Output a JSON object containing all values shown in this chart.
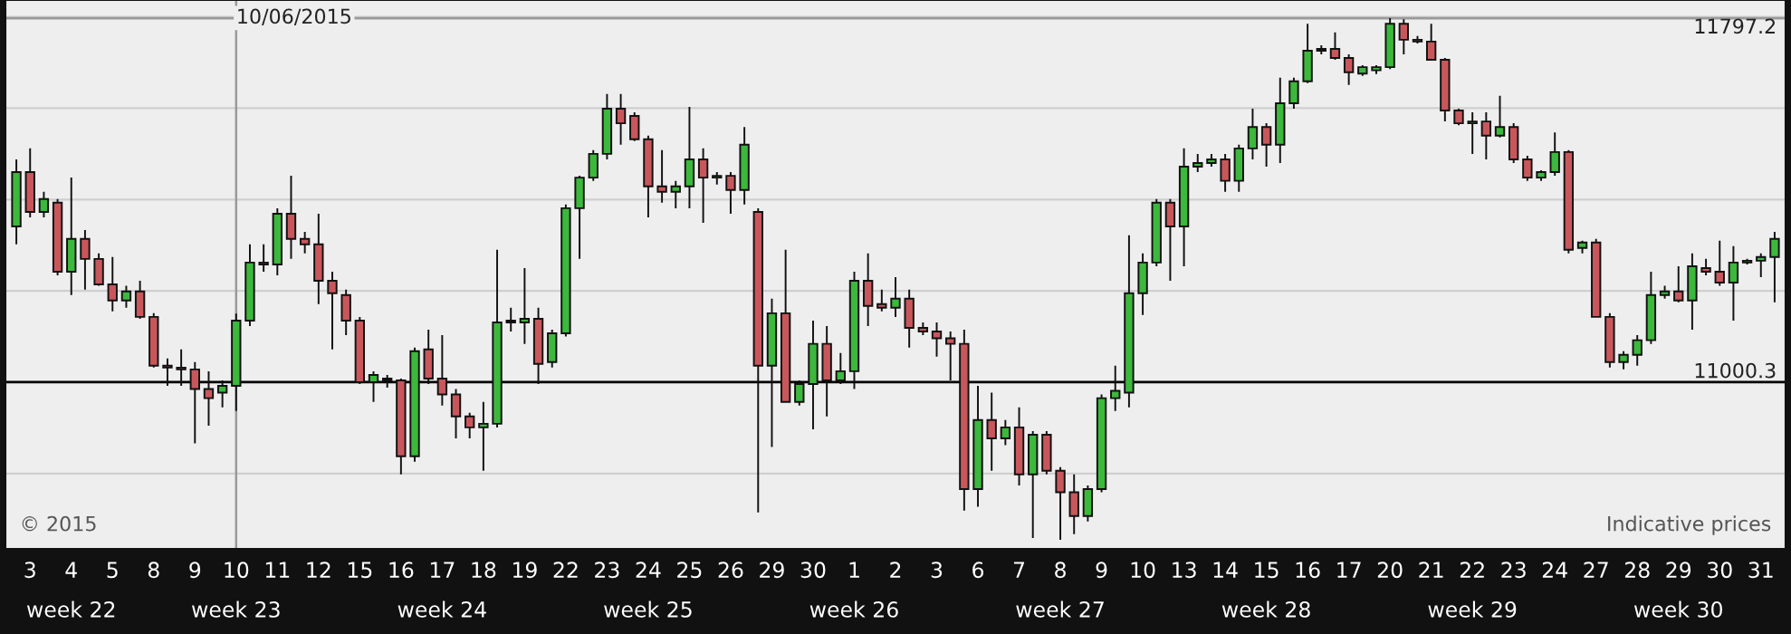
{
  "chart_data": {
    "type": "candlestick",
    "categories": [
      null,
      "3",
      null,
      null,
      "4",
      null,
      null,
      "5",
      null,
      null,
      "8",
      null,
      null,
      "9",
      null,
      null,
      "10",
      null,
      null,
      "11",
      null,
      null,
      "12",
      null,
      null,
      "15",
      null,
      null,
      "16",
      null,
      null,
      "17",
      null,
      null,
      "18",
      null,
      null,
      "19",
      null,
      null,
      "22",
      null,
      null,
      "23",
      null,
      null,
      "24",
      null,
      null,
      "25",
      null,
      null,
      "26",
      null,
      null,
      "29",
      null,
      null,
      "30",
      null,
      null,
      "1",
      null,
      null,
      "2",
      null,
      null,
      "3",
      null,
      null,
      "6",
      null,
      null,
      "7",
      null,
      null,
      "8",
      null,
      null,
      "9",
      null,
      null,
      "10",
      null,
      null,
      "13",
      null,
      null,
      "14",
      null,
      null,
      "15",
      null,
      null,
      "16",
      null,
      null,
      "17",
      null,
      null,
      "20",
      null,
      null,
      "21",
      null,
      null,
      "22",
      null,
      null,
      "23",
      null,
      null,
      "24",
      null,
      null,
      "27",
      null,
      null,
      "28",
      null,
      null,
      "29",
      null,
      null,
      "30",
      null,
      null,
      "31",
      null
    ],
    "ohlc": [
      [
        11341,
        11488,
        11302,
        11460
      ],
      [
        11460,
        11512,
        11361,
        11373
      ],
      [
        11373,
        11417,
        11361,
        11401
      ],
      [
        11393,
        11401,
        11234,
        11242
      ],
      [
        11242,
        11448,
        11191,
        11314
      ],
      [
        11314,
        11333,
        11203,
        11270
      ],
      [
        11270,
        11282,
        11211,
        11214
      ],
      [
        11214,
        11274,
        11155,
        11179
      ],
      [
        11179,
        11211,
        11163,
        11199
      ],
      [
        11199,
        11222,
        11139,
        11143
      ],
      [
        11143,
        11151,
        11032,
        11036
      ],
      [
        11036,
        11052,
        10992,
        11032
      ],
      [
        11032,
        11072,
        10992,
        11028
      ],
      [
        11028,
        11044,
        10866,
        10985
      ],
      [
        10985,
        11024,
        10905,
        10965
      ],
      [
        10977,
        11004,
        10945,
        10992
      ],
      [
        10992,
        11150,
        10937,
        11135
      ],
      [
        11135,
        11302,
        11123,
        11262
      ],
      [
        11262,
        11302,
        11242,
        11258
      ],
      [
        11258,
        11381,
        11234,
        11369
      ],
      [
        11369,
        11452,
        11270,
        11314
      ],
      [
        11314,
        11329,
        11282,
        11302
      ],
      [
        11302,
        11369,
        11171,
        11222
      ],
      [
        11222,
        11242,
        11072,
        11195
      ],
      [
        11191,
        11203,
        11103,
        11135
      ],
      [
        11135,
        11143,
        10996,
        11000
      ],
      [
        11000,
        11024,
        10957,
        11016
      ],
      [
        11008,
        11016,
        10988,
        11004
      ],
      [
        11004,
        11008,
        10798,
        10838
      ],
      [
        10838,
        11076,
        10826,
        11068
      ],
      [
        11072,
        11115,
        10996,
        11008
      ],
      [
        11008,
        11103,
        10949,
        10973
      ],
      [
        10973,
        10985,
        10877,
        10925
      ],
      [
        10925,
        10933,
        10877,
        10901
      ],
      [
        10901,
        10957,
        10806,
        10909
      ],
      [
        10909,
        11290,
        10901,
        11131
      ],
      [
        11135,
        11163,
        11111,
        11131
      ],
      [
        11131,
        11250,
        11084,
        11139
      ],
      [
        11139,
        11163,
        10996,
        11040
      ],
      [
        11044,
        11115,
        11032,
        11107
      ],
      [
        11107,
        11389,
        11100,
        11381
      ],
      [
        11381,
        11452,
        11270,
        11448
      ],
      [
        11448,
        11508,
        11441,
        11500
      ],
      [
        11500,
        11631,
        11488,
        11599
      ],
      [
        11599,
        11631,
        11520,
        11567
      ],
      [
        11583,
        11591,
        11528,
        11532
      ],
      [
        11532,
        11540,
        11361,
        11429
      ],
      [
        11429,
        11508,
        11393,
        11417
      ],
      [
        11417,
        11441,
        11381,
        11429
      ],
      [
        11429,
        11603,
        11381,
        11488
      ],
      [
        11488,
        11512,
        11349,
        11448
      ],
      [
        11448,
        11460,
        11433,
        11452
      ],
      [
        11452,
        11460,
        11369,
        11421
      ],
      [
        11421,
        11559,
        11389,
        11520
      ],
      [
        11373,
        11381,
        10715,
        11036
      ],
      [
        11036,
        11183,
        10858,
        11151
      ],
      [
        11151,
        11290,
        10957,
        10957
      ],
      [
        10957,
        11004,
        10949,
        10996
      ],
      [
        10996,
        11135,
        10897,
        11084
      ],
      [
        11084,
        11123,
        10925,
        11004
      ],
      [
        11004,
        11064,
        10996,
        11024
      ],
      [
        11024,
        11242,
        10985,
        11222
      ],
      [
        11222,
        11282,
        11123,
        11167
      ],
      [
        11171,
        11203,
        11155,
        11163
      ],
      [
        11163,
        11230,
        11143,
        11183
      ],
      [
        11183,
        11203,
        11076,
        11119
      ],
      [
        11119,
        11131,
        11103,
        11111
      ],
      [
        11111,
        11131,
        11056,
        11096
      ],
      [
        11096,
        11111,
        11004,
        11084
      ],
      [
        11084,
        11115,
        10719,
        10766
      ],
      [
        10766,
        10992,
        10727,
        10917
      ],
      [
        10917,
        10977,
        10806,
        10877
      ],
      [
        10877,
        10917,
        10862,
        10901
      ],
      [
        10901,
        10945,
        10774,
        10798
      ],
      [
        10798,
        10893,
        10659,
        10885
      ],
      [
        10885,
        10893,
        10798,
        10806
      ],
      [
        10806,
        10814,
        10655,
        10759
      ],
      [
        10759,
        10798,
        10667,
        10707
      ],
      [
        10707,
        10774,
        10695,
        10766
      ],
      [
        10766,
        10973,
        10759,
        10965
      ],
      [
        10965,
        11036,
        10937,
        10981
      ],
      [
        10977,
        11322,
        10945,
        11195
      ],
      [
        11195,
        11282,
        11147,
        11262
      ],
      [
        11262,
        11401,
        11254,
        11393
      ],
      [
        11393,
        11401,
        11222,
        11341
      ],
      [
        11341,
        11512,
        11254,
        11472
      ],
      [
        11472,
        11500,
        11460,
        11480
      ],
      [
        11480,
        11500,
        11472,
        11488
      ],
      [
        11488,
        11500,
        11417,
        11441
      ],
      [
        11441,
        11520,
        11417,
        11512
      ],
      [
        11512,
        11599,
        11488,
        11559
      ],
      [
        11559,
        11567,
        11472,
        11520
      ],
      [
        11520,
        11667,
        11480,
        11611
      ],
      [
        11611,
        11667,
        11599,
        11659
      ],
      [
        11659,
        11785,
        11655,
        11726
      ],
      [
        11726,
        11738,
        11718,
        11730
      ],
      [
        11730,
        11766,
        11706,
        11710
      ],
      [
        11710,
        11718,
        11651,
        11679
      ],
      [
        11676,
        11694,
        11671,
        11690
      ],
      [
        11683,
        11694,
        11675,
        11690
      ],
      [
        11690,
        11797.2,
        11686,
        11785
      ],
      [
        11785,
        11795,
        11718,
        11750
      ],
      [
        11750,
        11758,
        11742,
        11746
      ],
      [
        11746,
        11785,
        11706,
        11706
      ],
      [
        11706,
        11710,
        11571,
        11595
      ],
      [
        11595,
        11599,
        11563,
        11567
      ],
      [
        11567,
        11591,
        11500,
        11571
      ],
      [
        11571,
        11591,
        11488,
        11540
      ],
      [
        11540,
        11627,
        11536,
        11559
      ],
      [
        11559,
        11567,
        11480,
        11488
      ],
      [
        11488,
        11496,
        11441,
        11448
      ],
      [
        11448,
        11464,
        11441,
        11460
      ],
      [
        11460,
        11547,
        11452,
        11504
      ],
      [
        11504,
        11508,
        11282,
        11290
      ],
      [
        11294,
        11310,
        11282,
        11306
      ],
      [
        11306,
        11314,
        11143,
        11143
      ],
      [
        11143,
        11151,
        11032,
        11044
      ],
      [
        11044,
        11068,
        11028,
        11060
      ],
      [
        11060,
        11103,
        11036,
        11092
      ],
      [
        11092,
        11242,
        11084,
        11191
      ],
      [
        11191,
        11211,
        11183,
        11199
      ],
      [
        11199,
        11254,
        11175,
        11179
      ],
      [
        11179,
        11282,
        11115,
        11254
      ],
      [
        11250,
        11270,
        11234,
        11242
      ],
      [
        11242,
        11310,
        11211,
        11218
      ],
      [
        11218,
        11298,
        11135,
        11262
      ],
      [
        11262,
        11270,
        11258,
        11266
      ],
      [
        11266,
        11282,
        11230,
        11274
      ],
      [
        11274,
        11329,
        11175,
        11314
      ]
    ],
    "colors": [
      "#3cb83c",
      "#c8575c",
      "#3cb83c",
      "#c8575c",
      "#3cb83c",
      "#c8575c",
      "#c8575c",
      "#c8575c",
      "#3cb83c",
      "#c8575c",
      "#c8575c",
      "#c8575c",
      "#c8575c",
      "#c8575c",
      "#c8575c",
      "#3cb83c",
      "#3cb83c",
      "#3cb83c",
      "#c8575c",
      "#3cb83c",
      "#c8575c",
      "#c8575c",
      "#c8575c",
      "#c8575c",
      "#c8575c",
      "#c8575c",
      "#3cb83c",
      "#c8575c",
      "#c8575c",
      "#3cb83c",
      "#c8575c",
      "#c8575c",
      "#c8575c",
      "#c8575c",
      "#3cb83c",
      "#3cb83c",
      "#c8575c",
      "#3cb83c",
      "#c8575c",
      "#3cb83c",
      "#3cb83c",
      "#3cb83c",
      "#3cb83c",
      "#3cb83c",
      "#c8575c",
      "#c8575c",
      "#c8575c",
      "#c8575c",
      "#3cb83c",
      "#3cb83c",
      "#c8575c",
      "#3cb83c",
      "#c8575c",
      "#3cb83c",
      "#c8575c",
      "#3cb83c",
      "#c8575c",
      "#3cb83c",
      "#3cb83c",
      "#c8575c",
      "#3cb83c",
      "#3cb83c",
      "#c8575c",
      "#c8575c",
      "#3cb83c",
      "#c8575c",
      "#c8575c",
      "#c8575c",
      "#c8575c",
      "#c8575c",
      "#3cb83c",
      "#c8575c",
      "#3cb83c",
      "#c8575c",
      "#3cb83c",
      "#c8575c",
      "#c8575c",
      "#c8575c",
      "#3cb83c",
      "#3cb83c",
      "#3cb83c",
      "#3cb83c",
      "#3cb83c",
      "#3cb83c",
      "#c8575c",
      "#3cb83c",
      "#3cb83c",
      "#3cb83c",
      "#c8575c",
      "#3cb83c",
      "#3cb83c",
      "#c8575c",
      "#3cb83c",
      "#3cb83c",
      "#3cb83c",
      "#3cb83c",
      "#c8575c",
      "#c8575c",
      "#3cb83c",
      "#3cb83c",
      "#3cb83c",
      "#c8575c",
      "#c8575c",
      "#c8575c",
      "#c8575c",
      "#c8575c",
      "#3cb83c",
      "#c8575c",
      "#3cb83c",
      "#c8575c",
      "#c8575c",
      "#3cb83c",
      "#3cb83c",
      "#c8575c",
      "#3cb83c",
      "#c8575c",
      "#c8575c",
      "#3cb83c",
      "#3cb83c",
      "#3cb83c",
      "#3cb83c",
      "#c8575c",
      "#3cb83c",
      "#c8575c",
      "#c8575c",
      "#3cb83c",
      "#3cb83c",
      "#3cb83c",
      "#3cb83c"
    ],
    "ylim": [
      10635,
      11837
    ],
    "yticks": [
      {
        "value": 10800,
        "label": null
      },
      {
        "value": 11000,
        "label": null
      },
      {
        "value": 11200,
        "label": null
      },
      {
        "value": 11400,
        "label": null
      },
      {
        "value": 11600,
        "label": null
      },
      {
        "value": 11800,
        "label": null
      }
    ],
    "tick_labels": "x",
    "grid": "y",
    "ref_lines": [
      {
        "axis": "y",
        "value": 11000.3,
        "label": "11000.3",
        "color": "#000000"
      },
      {
        "axis": "y",
        "value": 11797.2,
        "label": "11797.2",
        "color": "#9a9a9a"
      },
      {
        "axis": "x",
        "value": "10",
        "label": "10/06/2015",
        "color": "#9a9a9a"
      }
    ],
    "annotations": [
      "© 2015",
      "Indicative prices",
      "week 22",
      "week 23",
      "week 24",
      "week 25",
      "week 26",
      "week 27",
      "week 28",
      "week 29",
      "week 30"
    ]
  }
}
